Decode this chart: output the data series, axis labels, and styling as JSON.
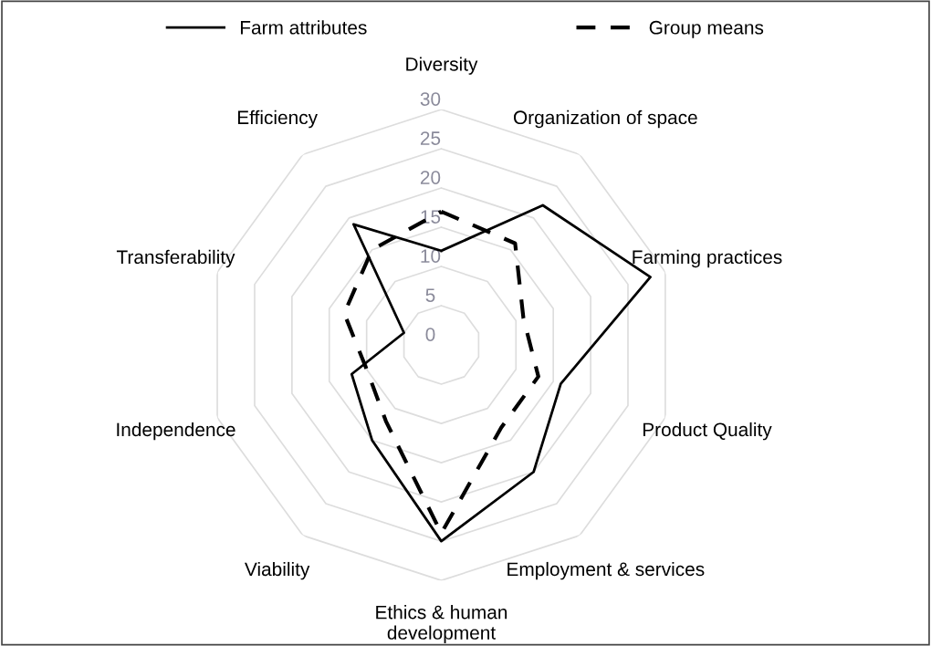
{
  "chart_data": {
    "type": "radar",
    "categories": [
      "Diversity",
      "Organization of space",
      "Farming practices",
      "Product Quality",
      "Employment & services",
      "Ethics & human\ndevelopment",
      "Viability",
      "Independence",
      "Transferability",
      "Efficiency"
    ],
    "series": [
      {
        "name": "Farm attributes",
        "color": "#000000",
        "line_style": "solid",
        "values": [
          12,
          22,
          28,
          16,
          20,
          25,
          15,
          12,
          5,
          19
        ]
      },
      {
        "name": "Group means",
        "color": "#000000",
        "line_style": "dashed",
        "values": [
          17,
          16,
          11,
          13,
          13,
          24,
          12,
          10,
          13,
          15
        ]
      }
    ],
    "ylim": [
      0,
      30
    ],
    "yticks": [
      0,
      5,
      10,
      15,
      20,
      25,
      30
    ],
    "grid": true,
    "legend": "top",
    "marker": "none"
  }
}
